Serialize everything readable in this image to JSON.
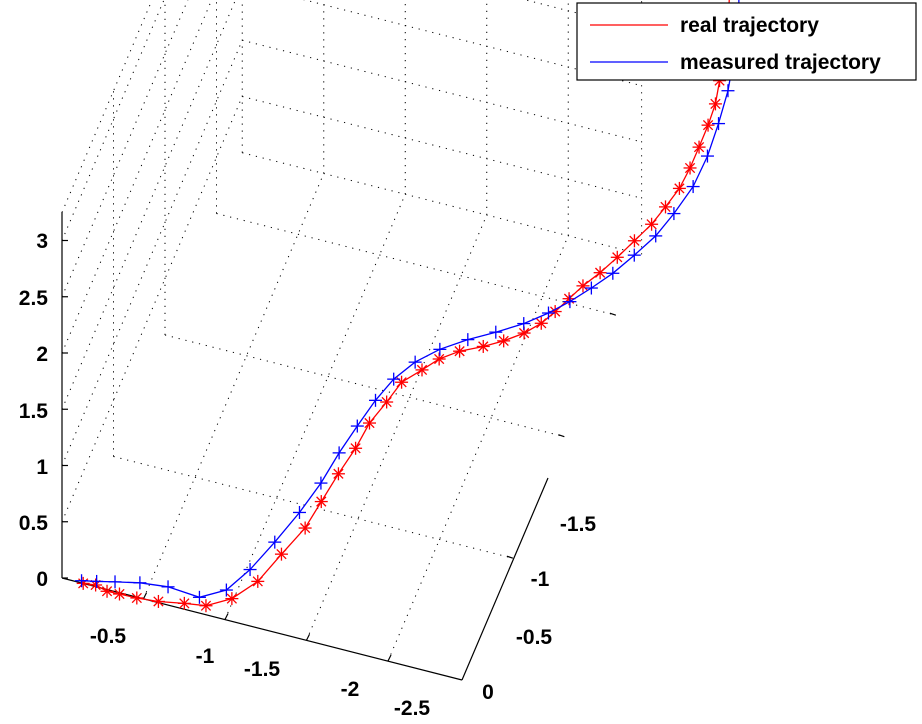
{
  "chart_data": {
    "type": "line",
    "projection": "3d",
    "title": "",
    "xlabel": "",
    "ylabel": "",
    "zlabel": "",
    "grid": true,
    "legend_position": "top-right",
    "x_ticks": [
      "-0.5",
      "-1",
      "-1.5",
      "-2",
      "-2.5"
    ],
    "y_ticks": [
      "0",
      "-0.5",
      "-1",
      "-1.5"
    ],
    "z_ticks": [
      "0",
      "0.5",
      "1",
      "1.5",
      "2",
      "2.5",
      "3"
    ],
    "series": [
      {
        "name": "real trajectory",
        "color": "#ff0000",
        "marker": "asterisk",
        "x": [
          -0.13,
          -0.2,
          -0.27,
          -0.34,
          -0.44,
          -0.56,
          -0.7,
          -0.82,
          -0.96,
          -1.1,
          -1.22,
          -1.34,
          -1.42,
          -1.5,
          -1.58,
          -1.64,
          -1.72,
          -1.78,
          -1.88,
          -1.96,
          -2.06,
          -2.18,
          -2.28,
          -2.38,
          -2.46,
          -2.52,
          -2.58,
          -2.64,
          -2.72,
          -2.8,
          -2.88,
          -2.96,
          -3.02,
          -3.08,
          -3.12,
          -3.15,
          -3.18,
          -3.2,
          -3.2,
          -3.2,
          -3.19,
          -3.18,
          -3.16,
          -3.12,
          -3.07,
          -3.04,
          -3.0
        ],
        "y": [
          0.0,
          -0.01,
          -0.01,
          -0.02,
          -0.03,
          -0.05,
          -0.08,
          -0.1,
          -0.13,
          -0.16,
          -0.2,
          -0.24,
          -0.27,
          -0.31,
          -0.35,
          -0.39,
          -0.43,
          -0.48,
          -0.52,
          -0.56,
          -0.6,
          -0.64,
          -0.68,
          -0.72,
          -0.76,
          -0.8,
          -0.84,
          -0.88,
          -0.92,
          -0.96,
          -1.0,
          -1.04,
          -1.08,
          -1.12,
          -1.16,
          -1.2,
          -1.24,
          -1.28,
          -1.32,
          -1.36,
          -1.4,
          -1.44,
          -1.48,
          -1.52,
          -1.56,
          -1.6,
          -1.65
        ],
        "z": [
          0.0,
          -0.01,
          -0.04,
          -0.06,
          -0.08,
          -0.11,
          -0.14,
          -0.16,
          -0.11,
          0.03,
          0.23,
          0.42,
          0.62,
          0.81,
          0.98,
          1.14,
          1.27,
          1.36,
          1.42,
          1.46,
          1.48,
          1.48,
          1.48,
          1.5,
          1.53,
          1.57,
          1.62,
          1.67,
          1.73,
          1.81,
          1.9,
          1.99,
          2.08,
          2.18,
          2.29,
          2.4,
          2.52,
          2.63,
          2.75,
          2.87,
          2.98,
          3.08,
          3.17,
          3.26,
          3.34,
          3.41,
          3.46
        ]
      },
      {
        "name": "measured trajectory",
        "color": "#0000ff",
        "marker": "plus",
        "x": [
          -0.12,
          -0.2,
          -0.3,
          -0.44,
          -0.6,
          -0.78,
          -0.92,
          -1.04,
          -1.16,
          -1.28,
          -1.38,
          -1.46,
          -1.54,
          -1.62,
          -1.7,
          -1.8,
          -1.92,
          -2.06,
          -2.2,
          -2.34,
          -2.46,
          -2.56,
          -2.66,
          -2.76,
          -2.86,
          -2.96,
          -3.04,
          -3.12,
          -3.17,
          -3.2,
          -3.22,
          -3.22,
          -3.21,
          -3.18,
          -3.12,
          -3.06,
          -3.0
        ],
        "y": [
          0.0,
          -0.02,
          -0.04,
          -0.06,
          -0.08,
          -0.1,
          -0.14,
          -0.18,
          -0.23,
          -0.28,
          -0.33,
          -0.38,
          -0.43,
          -0.48,
          -0.53,
          -0.58,
          -0.63,
          -0.68,
          -0.73,
          -0.78,
          -0.83,
          -0.88,
          -0.93,
          -0.98,
          -1.03,
          -1.08,
          -1.13,
          -1.19,
          -1.25,
          -1.31,
          -1.37,
          -1.43,
          -1.49,
          -1.54,
          -1.58,
          -1.62,
          -1.66
        ],
        "z": [
          0.02,
          0.0,
          -0.01,
          -0.01,
          -0.03,
          -0.1,
          -0.07,
          0.07,
          0.25,
          0.45,
          0.64,
          0.83,
          0.99,
          1.14,
          1.25,
          1.33,
          1.38,
          1.41,
          1.42,
          1.44,
          1.47,
          1.5,
          1.55,
          1.61,
          1.7,
          1.8,
          1.92,
          2.06,
          2.22,
          2.39,
          2.56,
          2.74,
          2.92,
          3.1,
          3.27,
          3.4,
          3.5
        ]
      }
    ]
  }
}
